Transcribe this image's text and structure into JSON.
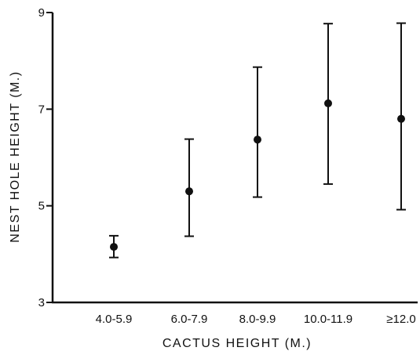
{
  "chart_data": {
    "type": "scatter",
    "title": "",
    "xlabel": "CACTUS HEIGHT (M.)",
    "ylabel": "NEST HOLE HEIGHT (M.)",
    "categories": [
      "4.0-5.9",
      "6.0-7.9",
      "8.0-9.9",
      "10.0-11.9",
      "≥12.0"
    ],
    "values": [
      4.15,
      5.3,
      6.37,
      7.12,
      6.8
    ],
    "error_low": [
      3.93,
      4.37,
      5.18,
      5.45,
      4.92
    ],
    "error_high": [
      4.38,
      6.38,
      7.87,
      8.77,
      8.78
    ],
    "ylim": [
      3,
      9
    ],
    "yticks": [
      3,
      5,
      7,
      9
    ],
    "ytick_labels": [
      "3",
      "5",
      "7",
      "9"
    ],
    "grid": false,
    "legend": "none"
  }
}
